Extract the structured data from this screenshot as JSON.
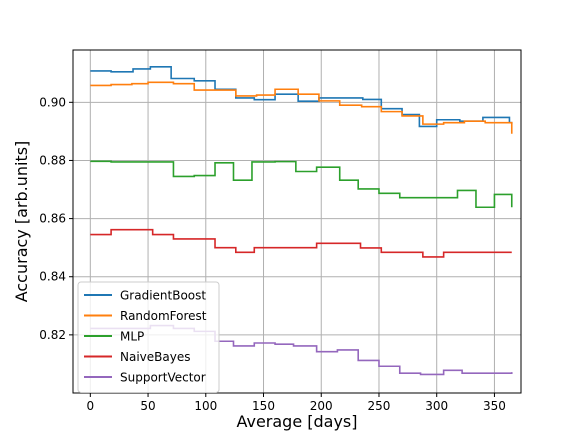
{
  "chart_data": {
    "type": "line",
    "xlabel": "Average [days]",
    "ylabel": "Accuracy [arb.units]",
    "xlim": [
      -15,
      373
    ],
    "ylim": [
      0.8,
      0.918
    ],
    "xticks": [
      0,
      50,
      100,
      150,
      200,
      250,
      300,
      350
    ],
    "yticks": [
      0.82,
      0.84,
      0.86,
      0.88,
      0.9
    ],
    "ytick_labels": [
      "0.82",
      "0.84",
      "0.86",
      "0.88",
      "0.90"
    ],
    "grid": true,
    "legend_position": "lower-left",
    "line_style": "steps",
    "series": [
      {
        "name": "GradientBoost",
        "color": "#1f77b4",
        "x": [
          0,
          18,
          37,
          52,
          70,
          90,
          108,
          126,
          142,
          160,
          180,
          198,
          216,
          236,
          252,
          270,
          285,
          300,
          320,
          340,
          363,
          365
        ],
        "y": [
          0.9108,
          0.9105,
          0.9115,
          0.9122,
          0.9082,
          0.9074,
          0.9045,
          0.9015,
          0.9009,
          0.9028,
          0.9004,
          0.9015,
          0.9015,
          0.901,
          0.8978,
          0.8958,
          0.8917,
          0.894,
          0.8935,
          0.8948,
          0.893,
          0.8925
        ]
      },
      {
        "name": "RandomForest",
        "color": "#ff7f0e",
        "x": [
          0,
          18,
          36,
          50,
          72,
          90,
          108,
          126,
          144,
          160,
          180,
          198,
          216,
          235,
          252,
          270,
          288,
          306,
          324,
          342,
          363,
          365
        ],
        "y": [
          0.9058,
          0.9061,
          0.9064,
          0.9069,
          0.9064,
          0.9042,
          0.9042,
          0.9022,
          0.9025,
          0.9045,
          0.9028,
          0.9005,
          0.899,
          0.8985,
          0.8968,
          0.8953,
          0.8925,
          0.893,
          0.8935,
          0.893,
          0.893,
          0.8892
        ]
      },
      {
        "name": "MLP",
        "color": "#2ca02c",
        "x": [
          0,
          18,
          36,
          54,
          72,
          90,
          108,
          124,
          140,
          160,
          178,
          196,
          216,
          232,
          250,
          268,
          284,
          300,
          318,
          334,
          350,
          363,
          365
        ],
        "y": [
          0.8797,
          0.8795,
          0.8795,
          0.8795,
          0.8745,
          0.8748,
          0.8792,
          0.8732,
          0.8795,
          0.8796,
          0.8762,
          0.8777,
          0.8732,
          0.8702,
          0.8687,
          0.8672,
          0.8672,
          0.8672,
          0.8697,
          0.8639,
          0.8683,
          0.8683,
          0.8639
        ]
      },
      {
        "name": "NaiveBayes",
        "color": "#d62728",
        "x": [
          0,
          18,
          36,
          54,
          72,
          90,
          108,
          126,
          142,
          160,
          178,
          196,
          216,
          234,
          252,
          270,
          288,
          306,
          324,
          342,
          363,
          365
        ],
        "y": [
          0.8545,
          0.8562,
          0.8562,
          0.8545,
          0.853,
          0.853,
          0.85,
          0.8484,
          0.85,
          0.85,
          0.85,
          0.8515,
          0.8515,
          0.8499,
          0.8484,
          0.8484,
          0.8468,
          0.8484,
          0.8484,
          0.8484,
          0.8484,
          0.8484
        ]
      },
      {
        "name": "SupportVector",
        "color": "#9467bd",
        "x": [
          0,
          18,
          36,
          52,
          72,
          90,
          108,
          124,
          142,
          160,
          176,
          196,
          214,
          232,
          250,
          268,
          286,
          306,
          322,
          340,
          363,
          365
        ],
        "y": [
          0.8222,
          0.8222,
          0.8222,
          0.8232,
          0.8222,
          0.8212,
          0.8178,
          0.8162,
          0.8172,
          0.8168,
          0.8162,
          0.8142,
          0.8148,
          0.8112,
          0.8092,
          0.8068,
          0.8064,
          0.8078,
          0.8068,
          0.8068,
          0.8068,
          0.8072
        ]
      }
    ]
  }
}
